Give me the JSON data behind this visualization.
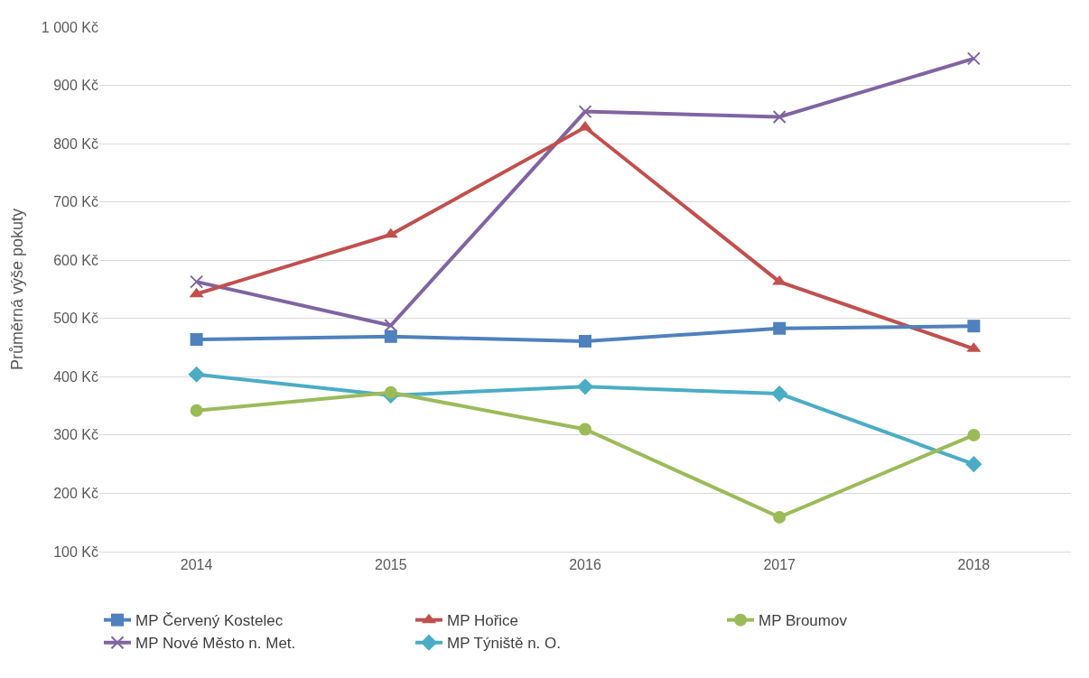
{
  "chart_data": {
    "type": "line",
    "ylabel": "Průměrná výše pokuty",
    "categories": [
      "2014",
      "2015",
      "2016",
      "2017",
      "2018"
    ],
    "ylim": [
      100,
      1000
    ],
    "yticks": [
      {
        "value": 100,
        "label": "100 Kč"
      },
      {
        "value": 200,
        "label": "200 Kč"
      },
      {
        "value": 300,
        "label": "300 Kč"
      },
      {
        "value": 400,
        "label": "400 Kč"
      },
      {
        "value": 500,
        "label": "500 Kč"
      },
      {
        "value": 600,
        "label": "600 Kč"
      },
      {
        "value": 700,
        "label": "700 Kč"
      },
      {
        "value": 800,
        "label": "800 Kč"
      },
      {
        "value": 900,
        "label": "900 Kč"
      },
      {
        "value": 1000,
        "label": "1 000 Kč"
      }
    ],
    "grid": "y",
    "legend": "bottom",
    "line_style": "solid",
    "series": [
      {
        "name": "MP Červený Kostelec",
        "color": "#4f81bd",
        "marker": "square",
        "values": [
          464,
          469,
          461,
          483,
          487
        ]
      },
      {
        "name": "MP Hořice",
        "color": "#c0504d",
        "marker": "triangle",
        "values": [
          542,
          644,
          828,
          563,
          448
        ]
      },
      {
        "name": "MP Broumov",
        "color": "#9bbb59",
        "marker": "circle",
        "values": [
          342,
          373,
          310,
          159,
          300
        ]
      },
      {
        "name": "MP Nové Město n. Met.",
        "color": "#8064a2",
        "marker": "cross",
        "values": [
          563,
          488,
          855,
          846,
          946
        ]
      },
      {
        "name": "MP Týniště n. O.",
        "color": "#4bacc6",
        "marker": "diamond",
        "values": [
          404,
          368,
          383,
          371,
          250
        ]
      }
    ]
  }
}
